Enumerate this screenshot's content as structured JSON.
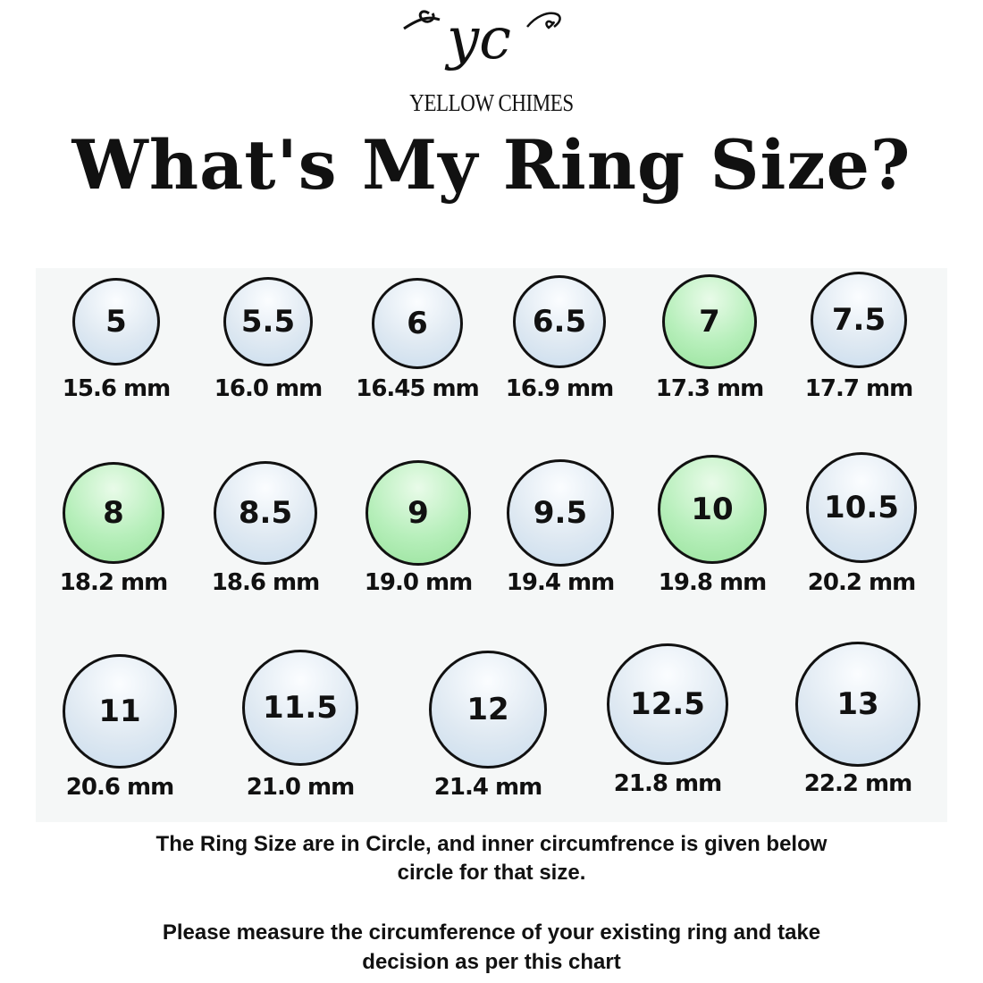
{
  "brand": {
    "logo_text": "yc",
    "name": "YELLOW CHIMES"
  },
  "title": "What's My Ring Size?",
  "colors": {
    "ring_default": "#d6e4f0",
    "ring_highlight": "#a6e8aa",
    "outline": "#111111"
  },
  "rings": [
    {
      "size": "5",
      "mm": "15.6 mm",
      "highlight": false
    },
    {
      "size": "5.5",
      "mm": "16.0 mm",
      "highlight": false
    },
    {
      "size": "6",
      "mm": "16.45 mm",
      "highlight": false
    },
    {
      "size": "6.5",
      "mm": "16.9 mm",
      "highlight": false
    },
    {
      "size": "7",
      "mm": "17.3 mm",
      "highlight": true
    },
    {
      "size": "7.5",
      "mm": "17.7 mm",
      "highlight": false
    },
    {
      "size": "8",
      "mm": "18.2 mm",
      "highlight": true
    },
    {
      "size": "8.5",
      "mm": "18.6 mm",
      "highlight": false
    },
    {
      "size": "9",
      "mm": "19.0 mm",
      "highlight": true
    },
    {
      "size": "9.5",
      "mm": "19.4 mm",
      "highlight": false
    },
    {
      "size": "10",
      "mm": "19.8 mm",
      "highlight": true
    },
    {
      "size": "10.5",
      "mm": "20.2 mm",
      "highlight": false
    },
    {
      "size": "11",
      "mm": "20.6 mm",
      "highlight": false
    },
    {
      "size": "11.5",
      "mm": "21.0 mm",
      "highlight": false
    },
    {
      "size": "12",
      "mm": "21.4 mm",
      "highlight": false
    },
    {
      "size": "12.5",
      "mm": "21.8 mm",
      "highlight": false
    },
    {
      "size": "13",
      "mm": "22.2 mm",
      "highlight": false
    }
  ],
  "notes": {
    "line1": "The Ring Size are in Circle, and inner circumfrence is  given below",
    "line2": "circle for that size.",
    "line3": "Please measure the circumference of your existing ring and take",
    "line4": "decision as per this chart"
  }
}
